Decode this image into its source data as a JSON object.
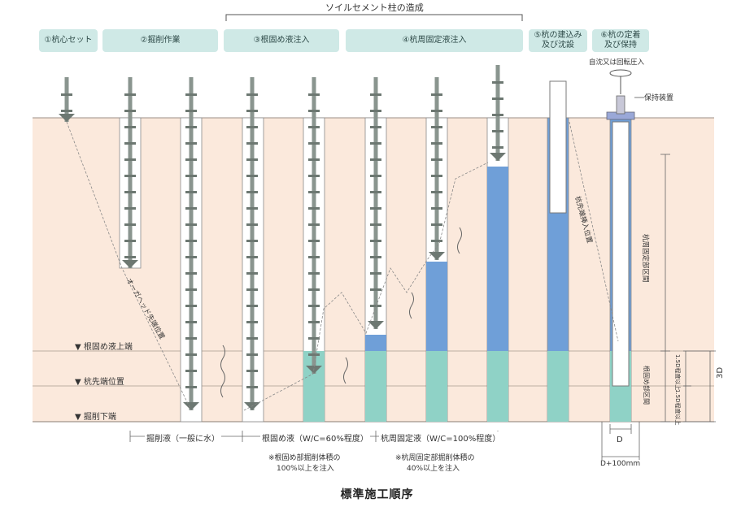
{
  "header": {
    "bracket_title": "ソイルセメント柱の造成"
  },
  "steps": [
    {
      "label": "①杭心セット"
    },
    {
      "label": "②掘削作業"
    },
    {
      "label": "③根固め液注入"
    },
    {
      "label": "④杭周固定液注入"
    },
    {
      "label": "⑤杭の建込み\n及び沈設"
    },
    {
      "label": "⑥杭の定着\n及び保持"
    }
  ],
  "annotations": {
    "rotation_press": "自沈又は回転圧入",
    "holding_device": "保持装置",
    "auger_tip_position": "オーガヘッド先端位置",
    "pile_tip_insert": "杭先端挿入位置",
    "zone_pile_fixing": "杭周固定部区間",
    "zone_root_fixing": "根固め部区間",
    "above_1_5d": "1.5D程度以上",
    "below_1_5d": "1.5D程度以上",
    "three_d": "3D",
    "d_label": "D",
    "d_plus": "D+100mm"
  },
  "levels": {
    "root_top": "▼ 根固め液上端",
    "pile_tip": "▼ 杭先端位置",
    "bottom": "▼ 掘削下端"
  },
  "fluids": {
    "excavation": "掘削液（一般に水）",
    "root_fixing": "根固め液（W/C=60%程度）",
    "pile_fixing": "杭周固定液（W/C=100%程度）",
    "root_note_1": "※根固め部掘削体積の",
    "root_note_2": "100%以上を注入",
    "pile_note_1": "※杭周固定部掘削体積の",
    "pile_note_2": "40%以上を注入"
  },
  "colors": {
    "soil": "#fbe9dc",
    "step_box": "#cfe9e6",
    "root_liquid": "#8fd2c6",
    "pile_liquid": "#6f9fd8",
    "rod": "#8a958f",
    "pile": "#ffffff"
  },
  "caption": "標準施工順序"
}
